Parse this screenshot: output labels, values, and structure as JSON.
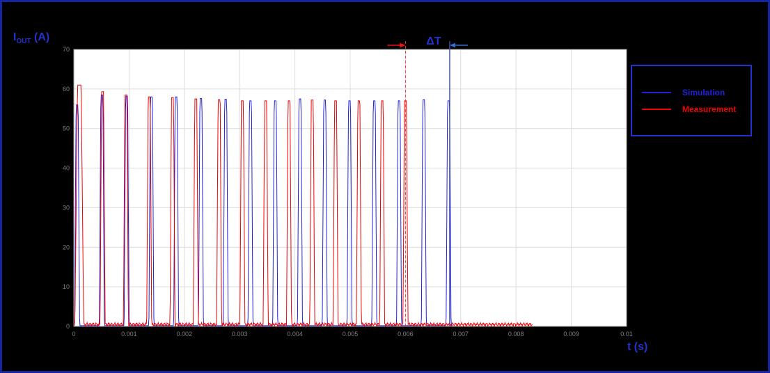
{
  "figure": {
    "background": "#000000",
    "border_color": "#15259b",
    "label_color": "#2233cc",
    "ylabel": {
      "main": "I",
      "sub": "OUT",
      "unit": " (A)"
    },
    "xlabel": "t (s)"
  },
  "chart_data": {
    "type": "line",
    "title": "",
    "xlabel": "t (s)",
    "ylabel": "I_OUT (A)",
    "xlim": [
      0,
      0.01
    ],
    "ylim": [
      0,
      70
    ],
    "xtick_labels": [
      "0",
      "0.001",
      "0.002",
      "0.003",
      "0.004",
      "0.005",
      "0.006",
      "0.007",
      "0.008",
      "0.009",
      "0.01"
    ],
    "ytick_labels": [
      "0",
      "10",
      "20",
      "30",
      "40",
      "50",
      "60",
      "70"
    ],
    "grid": true,
    "plot_bg": "#ffffff",
    "grid_color": "#dcdcdc",
    "box_color": "#999999",
    "tick_color": "#808080",
    "legend_position": "outside-right",
    "series": [
      {
        "name": "Simulation",
        "color": "#2020dd",
        "baseline": 0.2,
        "trace_end": 0.00686,
        "default_hw": 4.5e-05,
        "pulses": [
          {
            "t": 6e-05,
            "peak": 56.0
          },
          {
            "t": 0.000508,
            "peak": 58.5
          },
          {
            "t": 0.000956,
            "peak": 58.2
          },
          {
            "t": 0.001404,
            "peak": 58.0
          },
          {
            "t": 0.001852,
            "peak": 58.0
          },
          {
            "t": 0.0023,
            "peak": 57.6
          },
          {
            "t": 0.002748,
            "peak": 57.4
          },
          {
            "t": 0.003196,
            "peak": 57.0
          },
          {
            "t": 0.003644,
            "peak": 57.0
          },
          {
            "t": 0.004092,
            "peak": 57.5
          },
          {
            "t": 0.00454,
            "peak": 57.2
          },
          {
            "t": 0.004988,
            "peak": 57.0
          },
          {
            "t": 0.005436,
            "peak": 57.0
          },
          {
            "t": 0.005884,
            "peak": 57.0
          },
          {
            "t": 0.006332,
            "peak": 57.3
          },
          {
            "t": 0.00678,
            "peak": 57.0
          }
        ]
      },
      {
        "name": "Measurement",
        "color": "#ee0000",
        "baseline": 0.5,
        "noise_amplitude": 0.45,
        "trace_end": 0.0083,
        "default_hw": 4.5e-05,
        "pulses": [
          {
            "t": 0.0001,
            "peak": 61.0,
            "hw": 8e-05
          },
          {
            "t": 0.000521,
            "peak": 59.3
          },
          {
            "t": 0.000943,
            "peak": 58.5
          },
          {
            "t": 0.001364,
            "peak": 58.0
          },
          {
            "t": 0.001786,
            "peak": 57.8
          },
          {
            "t": 0.002207,
            "peak": 57.5
          },
          {
            "t": 0.002629,
            "peak": 57.3
          },
          {
            "t": 0.00305,
            "peak": 57.0
          },
          {
            "t": 0.003471,
            "peak": 57.0
          },
          {
            "t": 0.003893,
            "peak": 57.0
          },
          {
            "t": 0.004314,
            "peak": 57.2
          },
          {
            "t": 0.004736,
            "peak": 57.0
          },
          {
            "t": 0.005157,
            "peak": 57.0
          },
          {
            "t": 0.005579,
            "peak": 57.0
          },
          {
            "t": 0.006,
            "peak": 57.0
          }
        ]
      }
    ],
    "annotations": {
      "delta_label": "ΔT",
      "measurement_marker_x": 0.006,
      "simulation_marker_x": 0.0068,
      "marker_colors": {
        "measurement_line": "#ff3333",
        "simulation_line": "#3a4ab8",
        "measurement_arrow": "#ee1111",
        "simulation_arrow": "#2f6fd0"
      }
    },
    "legend": {
      "border_color": "#2233cc",
      "background": "#000000",
      "entries": [
        "Simulation",
        "Measurement"
      ]
    }
  }
}
